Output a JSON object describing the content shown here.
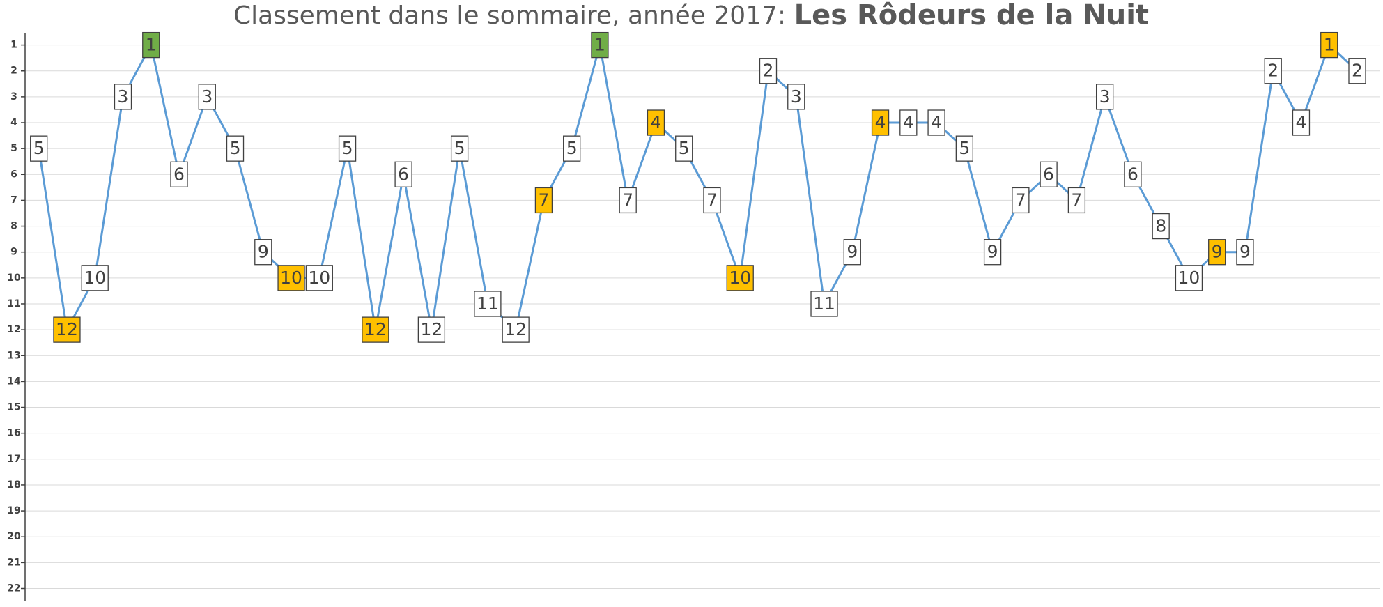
{
  "chart_data": {
    "type": "line",
    "title": "Classement dans le sommaire, année 2017:",
    "title_emphasis": "Les Rôdeurs de la Nuit",
    "values": [
      5,
      12,
      10,
      3,
      1,
      6,
      3,
      5,
      9,
      10,
      10,
      5,
      12,
      6,
      12,
      5,
      11,
      12,
      7,
      5,
      1,
      7,
      4,
      5,
      7,
      10,
      2,
      3,
      11,
      9,
      4,
      4,
      4,
      5,
      9,
      7,
      6,
      7,
      3,
      6,
      8,
      10,
      9,
      9,
      2,
      4,
      1,
      2
    ],
    "color": "#5b9bd5",
    "label_colors": [
      "#ffffff",
      "#ffc000",
      "#ffffff",
      "#ffffff",
      "#70ad47",
      "#ffffff",
      "#ffffff",
      "#ffffff",
      "#ffffff",
      "#ffc000",
      "#ffffff",
      "#ffffff",
      "#ffc000",
      "#ffffff",
      "#ffffff",
      "#ffffff",
      "#ffffff",
      "#ffffff",
      "#ffc000",
      "#ffffff",
      "#70ad47",
      "#ffffff",
      "#ffc000",
      "#ffffff",
      "#ffffff",
      "#ffc000",
      "#ffffff",
      "#ffffff",
      "#ffffff",
      "#ffffff",
      "#ffc000",
      "#ffffff",
      "#ffffff",
      "#ffffff",
      "#ffffff",
      "#ffffff",
      "#ffffff",
      "#ffffff",
      "#ffffff",
      "#ffffff",
      "#ffffff",
      "#ffffff",
      "#ffc000",
      "#ffffff",
      "#ffffff",
      "#ffffff",
      "#ffc000",
      "#ffffff"
    ],
    "ylim": [
      1,
      22
    ],
    "y_inverted": true,
    "yticks": [
      1,
      2,
      3,
      4,
      5,
      6,
      7,
      8,
      9,
      10,
      11,
      12,
      13,
      14,
      15,
      16,
      17,
      18,
      19,
      20,
      21,
      22
    ],
    "grid": true
  }
}
